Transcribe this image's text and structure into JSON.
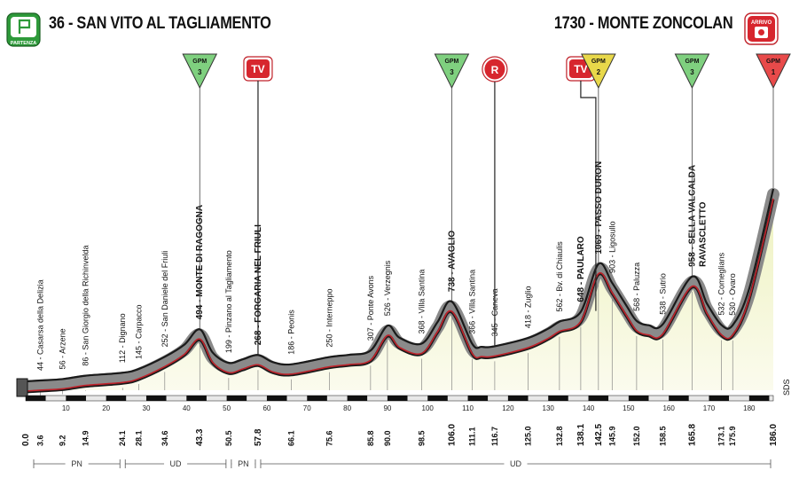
{
  "header": {
    "start_title": "36 - SAN VITO AL TAGLIAMENTO",
    "finish_title": "1730 - MONTE ZONCOLAN",
    "start_badge": "PARTENZA",
    "finish_badge": "ARRIVO"
  },
  "chart_data": {
    "type": "area",
    "title": "",
    "xlabel": "",
    "ylabel": "",
    "xlim": [
      0,
      186
    ],
    "ylim": [
      0,
      1800
    ],
    "x_ticks": [
      "10",
      "20",
      "30",
      "40",
      "50",
      "60",
      "70",
      "80",
      "90",
      "100",
      "110",
      "120",
      "130",
      "140",
      "150",
      "160",
      "170",
      "180"
    ],
    "profile": [
      {
        "km": 0.0,
        "alt": 36
      },
      {
        "km": 3.6,
        "alt": 44
      },
      {
        "km": 9.2,
        "alt": 56
      },
      {
        "km": 14.9,
        "alt": 86
      },
      {
        "km": 24.1,
        "alt": 112
      },
      {
        "km": 28.1,
        "alt": 145
      },
      {
        "km": 34.6,
        "alt": 252
      },
      {
        "km": 39.5,
        "alt": 360
      },
      {
        "km": 43.3,
        "alt": 494
      },
      {
        "km": 46.5,
        "alt": 290
      },
      {
        "km": 50.5,
        "alt": 199
      },
      {
        "km": 54.0,
        "alt": 230
      },
      {
        "km": 57.8,
        "alt": 268
      },
      {
        "km": 61.5,
        "alt": 205
      },
      {
        "km": 66.1,
        "alt": 186
      },
      {
        "km": 75.6,
        "alt": 250
      },
      {
        "km": 80.5,
        "alt": 270
      },
      {
        "km": 85.8,
        "alt": 307
      },
      {
        "km": 90.0,
        "alt": 526
      },
      {
        "km": 93.0,
        "alt": 420
      },
      {
        "km": 98.5,
        "alt": 368
      },
      {
        "km": 102.5,
        "alt": 560
      },
      {
        "km": 106.0,
        "alt": 738
      },
      {
        "km": 111.1,
        "alt": 366
      },
      {
        "km": 113.5,
        "alt": 340
      },
      {
        "km": 116.7,
        "alt": 345
      },
      {
        "km": 125.0,
        "alt": 418
      },
      {
        "km": 130.0,
        "alt": 500
      },
      {
        "km": 132.8,
        "alt": 562
      },
      {
        "km": 138.1,
        "alt": 648
      },
      {
        "km": 142.5,
        "alt": 1069
      },
      {
        "km": 145.9,
        "alt": 903
      },
      {
        "km": 149.5,
        "alt": 700
      },
      {
        "km": 152.0,
        "alt": 568
      },
      {
        "km": 155.0,
        "alt": 530
      },
      {
        "km": 158.5,
        "alt": 538
      },
      {
        "km": 165.8,
        "alt": 958
      },
      {
        "km": 169.5,
        "alt": 720
      },
      {
        "km": 173.1,
        "alt": 532
      },
      {
        "km": 175.9,
        "alt": 530
      },
      {
        "km": 180.0,
        "alt": 850
      },
      {
        "km": 186.0,
        "alt": 1730
      }
    ],
    "waypoints": [
      {
        "km": 3.6,
        "label": "44 - Casarsa della Delizia",
        "bold": false
      },
      {
        "km": 9.2,
        "label": "56 - Arzene",
        "bold": false
      },
      {
        "km": 14.9,
        "label": "86 - San Giorgio della Richinvelda",
        "bold": false
      },
      {
        "km": 24.1,
        "label": "112 - Dignano",
        "bold": false
      },
      {
        "km": 28.1,
        "label": "145 - Carpacco",
        "bold": false
      },
      {
        "km": 34.6,
        "label": "252 - San Daniele del Friuli",
        "bold": false
      },
      {
        "km": 43.3,
        "label": "494 - MONTE DI RAGOGNA",
        "bold": true
      },
      {
        "km": 50.5,
        "label": "199 - Pinzano al Tagliamento",
        "bold": false
      },
      {
        "km": 57.8,
        "label": "268 - FORGARIA NEL FRIULI",
        "bold": true
      },
      {
        "km": 66.1,
        "label": "186 - Peonis",
        "bold": false
      },
      {
        "km": 75.6,
        "label": "250 - Interneppo",
        "bold": false
      },
      {
        "km": 85.8,
        "label": "307 - Ponte Avons",
        "bold": false
      },
      {
        "km": 90.0,
        "label": "526 - Verzegnis",
        "bold": false
      },
      {
        "km": 98.5,
        "label": "368 - Villa Santina",
        "bold": false
      },
      {
        "km": 106.0,
        "label": "738 - AVAGLIO",
        "bold": true
      },
      {
        "km": 111.1,
        "label": "366 - Villa Santina",
        "bold": false
      },
      {
        "km": 116.7,
        "label": "345 - Caneva",
        "bold": false
      },
      {
        "km": 125.0,
        "label": "418 - Zuglio",
        "bold": false
      },
      {
        "km": 132.8,
        "label": "562 - Bv. di Chiaulis",
        "bold": false
      },
      {
        "km": 138.1,
        "label": "648 - PAULARO",
        "bold": true
      },
      {
        "km": 142.5,
        "label": "1069 - PASSO DURON",
        "bold": true
      },
      {
        "km": 145.9,
        "label": "903 - Ligosullo",
        "bold": false
      },
      {
        "km": 152.0,
        "label": "568 - Paluzza",
        "bold": false
      },
      {
        "km": 158.5,
        "label": "538 - Sutrio",
        "bold": false
      },
      {
        "km": 165.8,
        "label": "958 - SELLA VALCALDA",
        "label2": "RAVASCLETTO",
        "bold": true
      },
      {
        "km": 173.1,
        "label": "532 - Comeglians",
        "bold": false
      },
      {
        "km": 175.9,
        "label": "530 - Ovaro",
        "bold": false
      }
    ],
    "km_labels": [
      {
        "km": 0.0,
        "text": "0.0",
        "major": true
      },
      {
        "km": 3.6,
        "text": "3.6",
        "major": false
      },
      {
        "km": 9.2,
        "text": "9.2",
        "major": false
      },
      {
        "km": 14.9,
        "text": "14.9",
        "major": false
      },
      {
        "km": 24.1,
        "text": "24.1",
        "major": false
      },
      {
        "km": 28.1,
        "text": "28.1",
        "major": false
      },
      {
        "km": 34.6,
        "text": "34.6",
        "major": false
      },
      {
        "km": 43.3,
        "text": "43.3",
        "major": true
      },
      {
        "km": 50.5,
        "text": "50.5",
        "major": false
      },
      {
        "km": 57.8,
        "text": "57.8",
        "major": true
      },
      {
        "km": 66.1,
        "text": "66.1",
        "major": false
      },
      {
        "km": 75.6,
        "text": "75.6",
        "major": false
      },
      {
        "km": 85.8,
        "text": "85.8",
        "major": false
      },
      {
        "km": 90.0,
        "text": "90.0",
        "major": false
      },
      {
        "km": 98.5,
        "text": "98.5",
        "major": false
      },
      {
        "km": 106.0,
        "text": "106.0",
        "major": true
      },
      {
        "km": 111.1,
        "text": "111.1",
        "major": false
      },
      {
        "km": 116.7,
        "text": "116.7",
        "major": false
      },
      {
        "km": 125.0,
        "text": "125.0",
        "major": false
      },
      {
        "km": 132.8,
        "text": "132.8",
        "major": false
      },
      {
        "km": 138.1,
        "text": "138.1",
        "major": true
      },
      {
        "km": 142.5,
        "text": "142.5",
        "major": true
      },
      {
        "km": 145.9,
        "text": "145.9",
        "major": false
      },
      {
        "km": 152.0,
        "text": "152.0",
        "major": false
      },
      {
        "km": 158.5,
        "text": "158.5",
        "major": false
      },
      {
        "km": 165.8,
        "text": "165.8",
        "major": true
      },
      {
        "km": 173.1,
        "text": "173.1",
        "major": false
      },
      {
        "km": 175.9,
        "text": "175.9",
        "major": false
      },
      {
        "km": 186.0,
        "text": "186.0",
        "major": true
      }
    ],
    "markers": [
      {
        "type": "gpm",
        "km": 43.3,
        "cat": "3",
        "color": "#7fd07f"
      },
      {
        "type": "tv",
        "km": 57.8,
        "text": "TV"
      },
      {
        "type": "gpm",
        "km": 106.0,
        "cat": "3",
        "color": "#7fd07f"
      },
      {
        "type": "r",
        "km": 116.7,
        "text": "R"
      },
      {
        "type": "tv",
        "km": 138.1,
        "text": "TV"
      },
      {
        "type": "gpm",
        "km": 142.5,
        "cat": "2",
        "color": "#e8d84a"
      },
      {
        "type": "gpm",
        "km": 165.8,
        "cat": "3",
        "color": "#7fd07f"
      },
      {
        "type": "gpm",
        "km": 186.0,
        "cat": "1",
        "color": "#e84a4a"
      }
    ],
    "gpm_label": "GPM",
    "regions": [
      {
        "from": 0.0,
        "to": 24.1,
        "label": "PN"
      },
      {
        "from": 24.1,
        "to": 50.5,
        "label": "UD"
      },
      {
        "from": 50.5,
        "to": 57.8,
        "label": "PN"
      },
      {
        "from": 57.8,
        "to": 186.0,
        "label": "UD"
      }
    ],
    "logo": "SDS",
    "colors": {
      "fill": "#f7f8dc",
      "road_gray": "#8a8a8a",
      "road_dark": "#1a1a1a",
      "road_red": "#c0222a",
      "gpm3": "#7fd07f",
      "gpm2": "#e8d84a",
      "gpm1": "#e84a4a",
      "badge_red": "#d7262e"
    }
  }
}
